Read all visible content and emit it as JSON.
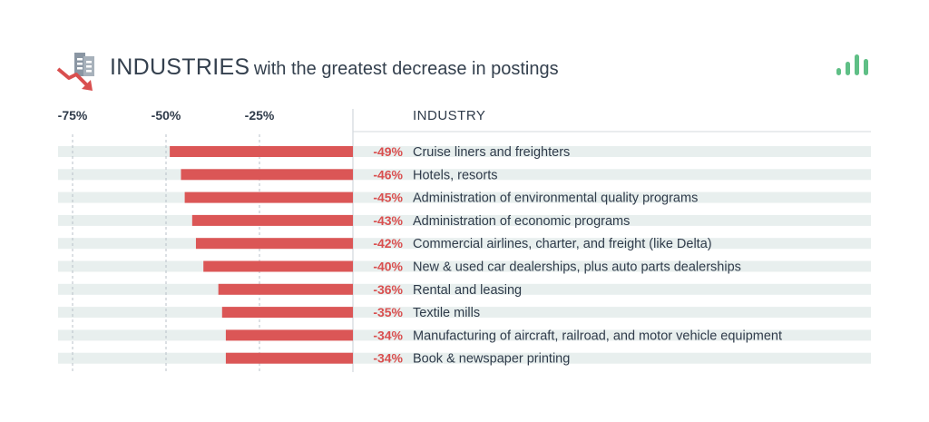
{
  "header": {
    "title_strong": "INDUSTRIES",
    "title_rest": "with the greatest decrease in postings",
    "icon": "building-decline-icon",
    "brand_icon": "bar-signal-icon"
  },
  "colors": {
    "bar": "#db5656",
    "band": "#e8efee",
    "text": "#2f3b4a",
    "brand": "#5fbf86"
  },
  "chart_data": {
    "type": "bar",
    "orientation": "horizontal",
    "column_header": "INDUSTRY",
    "xlim": [
      -80,
      0
    ],
    "ticks": [
      {
        "value": -75,
        "label": "-75%"
      },
      {
        "value": -50,
        "label": "-50%"
      },
      {
        "value": -25,
        "label": "-25%"
      }
    ],
    "categories": [
      "Cruise liners and freighters",
      "Hotels, resorts",
      "Administration of environmental quality programs",
      "Administration of economic programs",
      "Commercial airlines, charter, and freight (like Delta)",
      "New & used car dealerships, plus auto parts dealerships",
      "Rental and leasing",
      "Textile mills",
      "Manufacturing of aircraft, railroad, and motor vehicle equipment",
      "Book & newspaper printing"
    ],
    "values": [
      -49,
      -46,
      -45,
      -43,
      -42,
      -40,
      -36,
      -35,
      -34,
      -34
    ],
    "value_labels": [
      "-49%",
      "-46%",
      "-45%",
      "-43%",
      "-42%",
      "-40%",
      "-36%",
      "-35%",
      "-34%",
      "-34%"
    ]
  }
}
